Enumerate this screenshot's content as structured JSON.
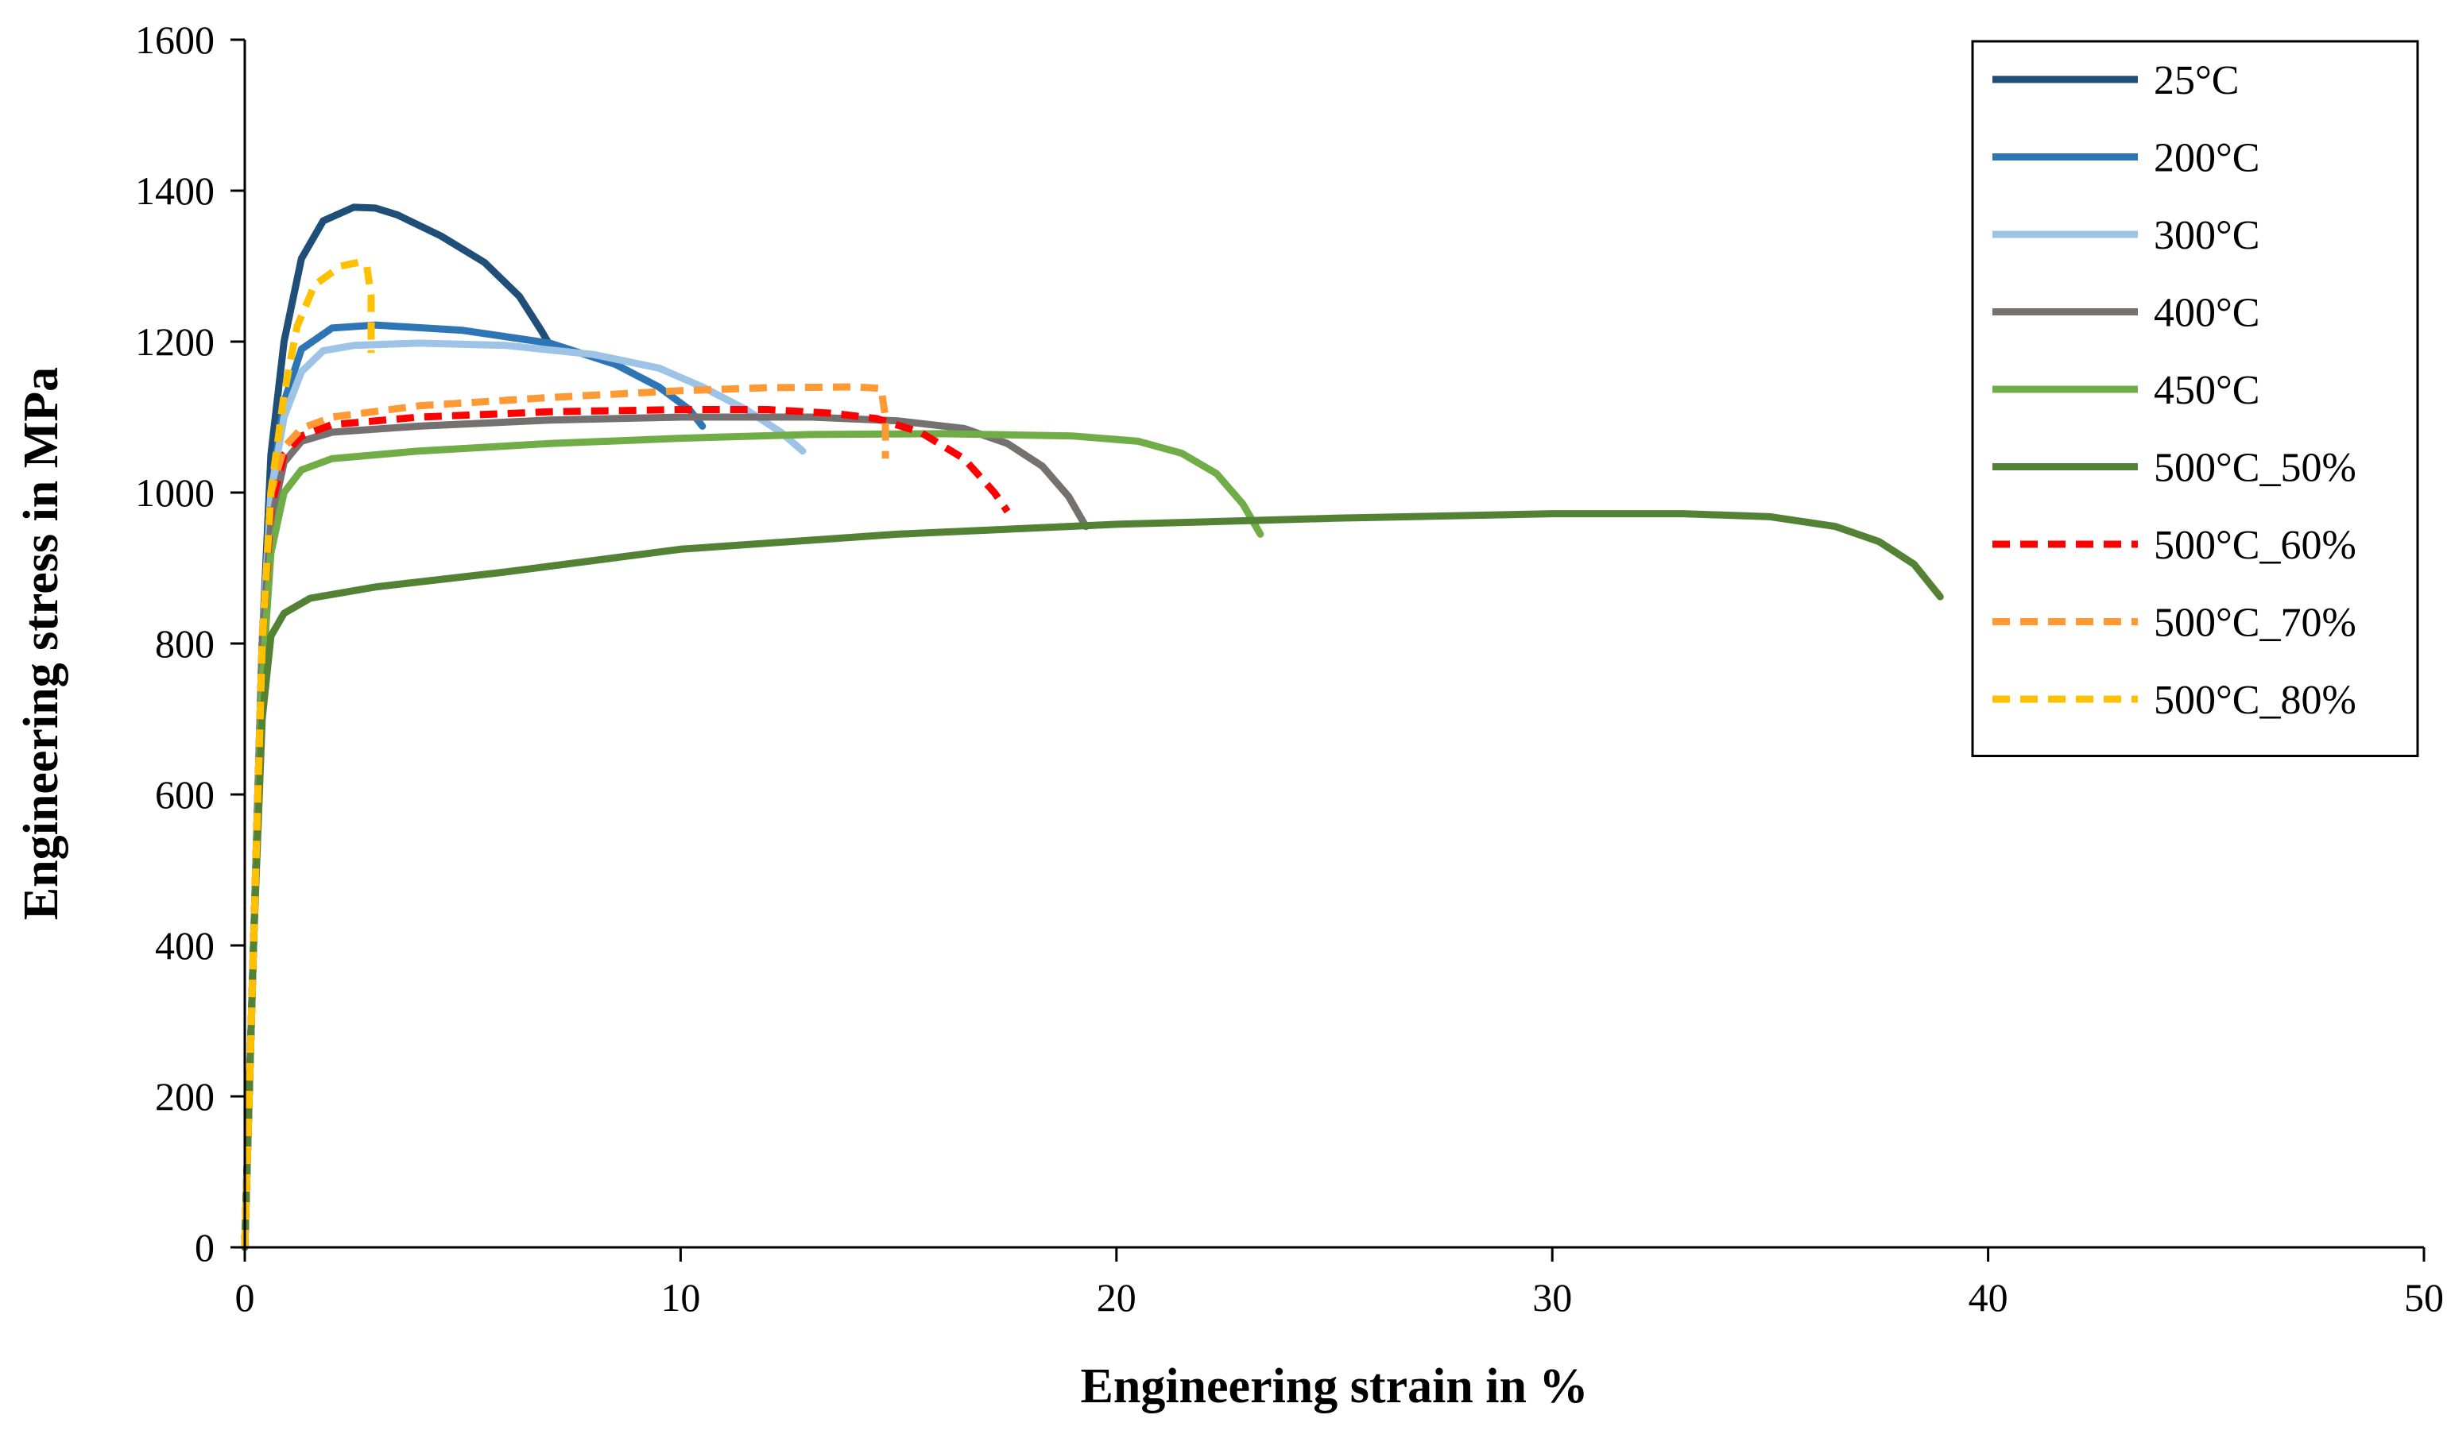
{
  "chart_data": {
    "type": "line",
    "title": "",
    "xlabel": "Engineering strain in %",
    "ylabel": "Engineering stress in MPa",
    "xlim": [
      0,
      50
    ],
    "ylim": [
      0,
      1600
    ],
    "xticks": [
      0,
      10,
      20,
      30,
      40,
      50
    ],
    "yticks": [
      0,
      200,
      400,
      600,
      800,
      1000,
      1200,
      1400,
      1600
    ],
    "grid": false,
    "legend_position": "top-right",
    "series": [
      {
        "name": "25°C",
        "color": "#1f4e79",
        "dash": "solid",
        "points": [
          [
            0,
            0
          ],
          [
            0.2,
            400
          ],
          [
            0.4,
            800
          ],
          [
            0.6,
            1050
          ],
          [
            0.9,
            1200
          ],
          [
            1.3,
            1310
          ],
          [
            1.8,
            1360
          ],
          [
            2.5,
            1378
          ],
          [
            3.0,
            1377
          ],
          [
            3.5,
            1368
          ],
          [
            4.5,
            1340
          ],
          [
            5.5,
            1305
          ],
          [
            6.3,
            1260
          ],
          [
            6.8,
            1215
          ],
          [
            7.0,
            1195
          ]
        ]
      },
      {
        "name": "200°C",
        "color": "#2e75b6",
        "dash": "solid",
        "points": [
          [
            0,
            0
          ],
          [
            0.2,
            400
          ],
          [
            0.4,
            800
          ],
          [
            0.6,
            1000
          ],
          [
            0.9,
            1120
          ],
          [
            1.3,
            1190
          ],
          [
            2.0,
            1218
          ],
          [
            3.0,
            1222
          ],
          [
            5.0,
            1215
          ],
          [
            7.0,
            1198
          ],
          [
            8.5,
            1170
          ],
          [
            9.5,
            1140
          ],
          [
            10.2,
            1110
          ],
          [
            10.5,
            1088
          ]
        ]
      },
      {
        "name": "300°C",
        "color": "#9dc3e6",
        "dash": "solid",
        "points": [
          [
            0,
            0
          ],
          [
            0.2,
            400
          ],
          [
            0.4,
            800
          ],
          [
            0.6,
            1000
          ],
          [
            0.9,
            1100
          ],
          [
            1.3,
            1160
          ],
          [
            1.8,
            1188
          ],
          [
            2.5,
            1195
          ],
          [
            4,
            1198
          ],
          [
            6,
            1195
          ],
          [
            8,
            1183
          ],
          [
            9.5,
            1165
          ],
          [
            10.5,
            1140
          ],
          [
            11.5,
            1110
          ],
          [
            12.3,
            1080
          ],
          [
            12.8,
            1055
          ]
        ]
      },
      {
        "name": "400°C",
        "color": "#767171",
        "dash": "solid",
        "points": [
          [
            0,
            0
          ],
          [
            0.2,
            400
          ],
          [
            0.4,
            800
          ],
          [
            0.6,
            960
          ],
          [
            0.9,
            1040
          ],
          [
            1.3,
            1068
          ],
          [
            2,
            1080
          ],
          [
            4,
            1088
          ],
          [
            7,
            1096
          ],
          [
            10,
            1100
          ],
          [
            13,
            1100
          ],
          [
            15,
            1095
          ],
          [
            16.5,
            1085
          ],
          [
            17.5,
            1065
          ],
          [
            18.3,
            1035
          ],
          [
            18.9,
            995
          ],
          [
            19.3,
            955
          ]
        ]
      },
      {
        "name": "450°C",
        "color": "#70ad47",
        "dash": "solid",
        "points": [
          [
            0,
            0
          ],
          [
            0.2,
            400
          ],
          [
            0.4,
            750
          ],
          [
            0.6,
            920
          ],
          [
            0.9,
            1000
          ],
          [
            1.3,
            1030
          ],
          [
            2,
            1045
          ],
          [
            4,
            1055
          ],
          [
            7,
            1065
          ],
          [
            10,
            1072
          ],
          [
            13,
            1077
          ],
          [
            16,
            1078
          ],
          [
            19,
            1075
          ],
          [
            20.5,
            1068
          ],
          [
            21.5,
            1052
          ],
          [
            22.3,
            1025
          ],
          [
            22.9,
            985
          ],
          [
            23.3,
            945
          ]
        ]
      },
      {
        "name": "500°C_50%",
        "color": "#548235",
        "dash": "solid",
        "points": [
          [
            0,
            0
          ],
          [
            0.2,
            400
          ],
          [
            0.4,
            700
          ],
          [
            0.6,
            810
          ],
          [
            0.9,
            840
          ],
          [
            1.5,
            860
          ],
          [
            3,
            875
          ],
          [
            6,
            895
          ],
          [
            10,
            925
          ],
          [
            15,
            945
          ],
          [
            20,
            958
          ],
          [
            25,
            966
          ],
          [
            30,
            972
          ],
          [
            33,
            972
          ],
          [
            35,
            968
          ],
          [
            36.5,
            955
          ],
          [
            37.5,
            935
          ],
          [
            38.3,
            905
          ],
          [
            38.9,
            862
          ]
        ]
      },
      {
        "name": "500°C_60%",
        "color": "#ff0000",
        "dash": "dashed",
        "points": [
          [
            0,
            0
          ],
          [
            0.2,
            400
          ],
          [
            0.4,
            800
          ],
          [
            0.6,
            980
          ],
          [
            0.9,
            1050
          ],
          [
            1.3,
            1075
          ],
          [
            2,
            1090
          ],
          [
            4,
            1100
          ],
          [
            7,
            1107
          ],
          [
            10,
            1110
          ],
          [
            12,
            1110
          ],
          [
            13.5,
            1105
          ],
          [
            14.5,
            1098
          ],
          [
            15.5,
            1080
          ],
          [
            16.5,
            1045
          ],
          [
            17.2,
            1000
          ],
          [
            17.5,
            975
          ]
        ]
      },
      {
        "name": "500°C_70%",
        "color": "#ff9933",
        "dash": "dashed",
        "points": [
          [
            0,
            0
          ],
          [
            0.2,
            400
          ],
          [
            0.4,
            800
          ],
          [
            0.6,
            1000
          ],
          [
            0.9,
            1060
          ],
          [
            1.3,
            1085
          ],
          [
            2,
            1100
          ],
          [
            4,
            1115
          ],
          [
            7,
            1126
          ],
          [
            10,
            1135
          ],
          [
            12,
            1139
          ],
          [
            14,
            1140
          ],
          [
            14.6,
            1138
          ],
          [
            14.7,
            1100
          ],
          [
            14.7,
            1045
          ]
        ]
      },
      {
        "name": "500°C_80%",
        "color": "#ffc000",
        "dash": "dashed",
        "points": [
          [
            0,
            0
          ],
          [
            0.2,
            400
          ],
          [
            0.4,
            800
          ],
          [
            0.6,
            1000
          ],
          [
            0.9,
            1130
          ],
          [
            1.2,
            1220
          ],
          [
            1.6,
            1275
          ],
          [
            2.2,
            1300
          ],
          [
            2.6,
            1305
          ],
          [
            2.8,
            1300
          ],
          [
            2.9,
            1260
          ],
          [
            2.9,
            1185
          ]
        ]
      }
    ]
  }
}
